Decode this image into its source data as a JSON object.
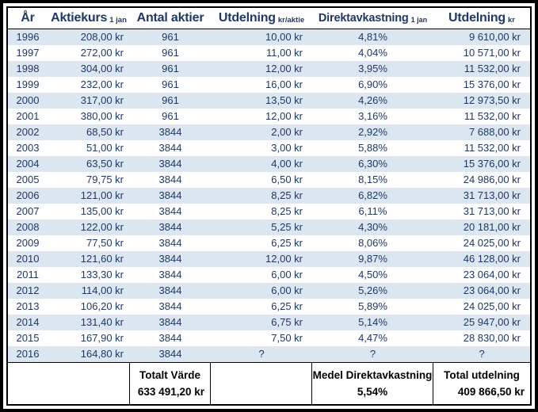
{
  "colors": {
    "band": "#dce6f1",
    "header_text": "#1f3864",
    "data_text": "#1f3864",
    "footer_text": "#000000",
    "border": "#000000"
  },
  "table": {
    "columns": [
      {
        "id": "year",
        "main": "År",
        "sub": ""
      },
      {
        "id": "share-price",
        "main": "Aktiekurs",
        "sub": "1 jan"
      },
      {
        "id": "share-count",
        "main": "Antal aktier",
        "sub": ""
      },
      {
        "id": "dividend-per-share",
        "main": "Utdelning",
        "sub": "kr/aktie"
      },
      {
        "id": "dividend-yield",
        "main": "Direktavkastning",
        "sub": "1 jan"
      },
      {
        "id": "total-dividend",
        "main": "Utdelning",
        "sub": "kr"
      }
    ],
    "rows": [
      [
        "1996",
        "208,00 kr",
        "961",
        "10,00 kr",
        "4,81%",
        "9 610,00 kr"
      ],
      [
        "1997",
        "272,00 kr",
        "961",
        "11,00 kr",
        "4,04%",
        "10 571,00 kr"
      ],
      [
        "1998",
        "304,00 kr",
        "961",
        "12,00 kr",
        "3,95%",
        "11 532,00 kr"
      ],
      [
        "1999",
        "232,00 kr",
        "961",
        "16,00 kr",
        "6,90%",
        "15 376,00 kr"
      ],
      [
        "2000",
        "317,00 kr",
        "961",
        "13,50 kr",
        "4,26%",
        "12 973,50 kr"
      ],
      [
        "2001",
        "380,00 kr",
        "961",
        "12,00 kr",
        "3,16%",
        "11 532,00 kr"
      ],
      [
        "2002",
        "68,50 kr",
        "3844",
        "2,00 kr",
        "2,92%",
        "7 688,00 kr"
      ],
      [
        "2003",
        "51,00 kr",
        "3844",
        "3,00 kr",
        "5,88%",
        "11 532,00 kr"
      ],
      [
        "2004",
        "63,50 kr",
        "3844",
        "4,00 kr",
        "6,30%",
        "15 376,00 kr"
      ],
      [
        "2005",
        "79,75 kr",
        "3844",
        "6,50 kr",
        "8,15%",
        "24 986,00 kr"
      ],
      [
        "2006",
        "121,00 kr",
        "3844",
        "8,25 kr",
        "6,82%",
        "31 713,00 kr"
      ],
      [
        "2007",
        "135,00 kr",
        "3844",
        "8,25 kr",
        "6,11%",
        "31 713,00 kr"
      ],
      [
        "2008",
        "122,00 kr",
        "3844",
        "5,25 kr",
        "4,30%",
        "20 181,00 kr"
      ],
      [
        "2009",
        "77,50 kr",
        "3844",
        "6,25 kr",
        "8,06%",
        "24 025,00 kr"
      ],
      [
        "2010",
        "121,60 kr",
        "3844",
        "12,00 kr",
        "9,87%",
        "46 128,00 kr"
      ],
      [
        "2011",
        "133,30 kr",
        "3844",
        "6,00 kr",
        "4,50%",
        "23 064,00 kr"
      ],
      [
        "2012",
        "114,00 kr",
        "3844",
        "6,00 kr",
        "5,26%",
        "23 064,00 kr"
      ],
      [
        "2013",
        "106,20 kr",
        "3844",
        "6,25 kr",
        "5,89%",
        "24 025,00 kr"
      ],
      [
        "2014",
        "131,40 kr",
        "3844",
        "6,75 kr",
        "5,14%",
        "25 947,00 kr"
      ],
      [
        "2015",
        "167,90 kr",
        "3844",
        "7,50 kr",
        "4,47%",
        "28 830,00 kr"
      ],
      [
        "2016",
        "164,80 kr",
        "3844",
        "?",
        "?",
        "?"
      ]
    ],
    "footer": [
      {
        "id": "footer-spacer-left",
        "label": "",
        "value": ""
      },
      {
        "id": "footer-total-value",
        "label": "Totalt Värde",
        "value": "633 491,20 kr"
      },
      {
        "id": "footer-spacer-mid",
        "label": "",
        "value": ""
      },
      {
        "id": "footer-average-yield",
        "label": "Medel Direktavkastning",
        "value": "5,54%"
      },
      {
        "id": "footer-total-dividend",
        "label": "Total utdelning",
        "value": "409 866,50 kr"
      }
    ]
  }
}
